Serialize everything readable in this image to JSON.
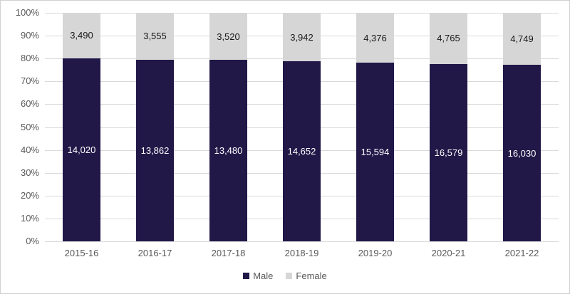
{
  "chart_data": {
    "type": "bar",
    "subtype": "stacked-100-percent",
    "title": "",
    "xlabel": "",
    "ylabel": "",
    "categories": [
      "2015-16",
      "2016-17",
      "2017-18",
      "2018-19",
      "2019-20",
      "2020-21",
      "2021-22"
    ],
    "series": [
      {
        "name": "Male",
        "color": "#211848",
        "values": [
          14020,
          13862,
          13480,
          14652,
          15594,
          16579,
          16030
        ],
        "labels": [
          "14,020",
          "13,862",
          "13,480",
          "14,652",
          "15,594",
          "16,579",
          "16,030"
        ],
        "label_color": "#ffffff"
      },
      {
        "name": "Female",
        "color": "#d6d6d6",
        "values": [
          3490,
          3555,
          3520,
          3942,
          4376,
          4765,
          4749
        ],
        "labels": [
          "3,490",
          "3,555",
          "3,520",
          "3,942",
          "4,376",
          "4,765",
          "4,749"
        ],
        "label_color": "#1a1a1a"
      }
    ],
    "y_axis": {
      "min": 0,
      "max": 100,
      "tick_labels": [
        "0%",
        "10%",
        "20%",
        "30%",
        "40%",
        "50%",
        "60%",
        "70%",
        "80%",
        "90%",
        "100%"
      ]
    },
    "grid": true,
    "gridline_color": "#d9d9d9",
    "axis_text_color": "#595959",
    "legend_position": "bottom"
  }
}
